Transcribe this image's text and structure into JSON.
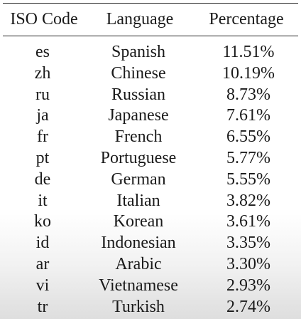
{
  "table": {
    "headers": [
      "ISO Code",
      "Language",
      "Percentage"
    ],
    "rows": [
      {
        "code": "es",
        "language": "Spanish",
        "percentage": "11.51%"
      },
      {
        "code": "zh",
        "language": "Chinese",
        "percentage": "10.19%"
      },
      {
        "code": "ru",
        "language": "Russian",
        "percentage": "8.73%"
      },
      {
        "code": "ja",
        "language": "Japanese",
        "percentage": "7.61%"
      },
      {
        "code": "fr",
        "language": "French",
        "percentage": "6.55%"
      },
      {
        "code": "pt",
        "language": "Portuguese",
        "percentage": "5.77%"
      },
      {
        "code": "de",
        "language": "German",
        "percentage": "5.55%"
      },
      {
        "code": "it",
        "language": "Italian",
        "percentage": "3.82%"
      },
      {
        "code": "ko",
        "language": "Korean",
        "percentage": "3.61%"
      },
      {
        "code": "id",
        "language": "Indonesian",
        "percentage": "3.35%"
      },
      {
        "code": "ar",
        "language": "Arabic",
        "percentage": "3.30%"
      },
      {
        "code": "vi",
        "language": "Vietnamese",
        "percentage": "2.93%"
      },
      {
        "code": "tr",
        "language": "Turkish",
        "percentage": "2.74%"
      }
    ]
  }
}
